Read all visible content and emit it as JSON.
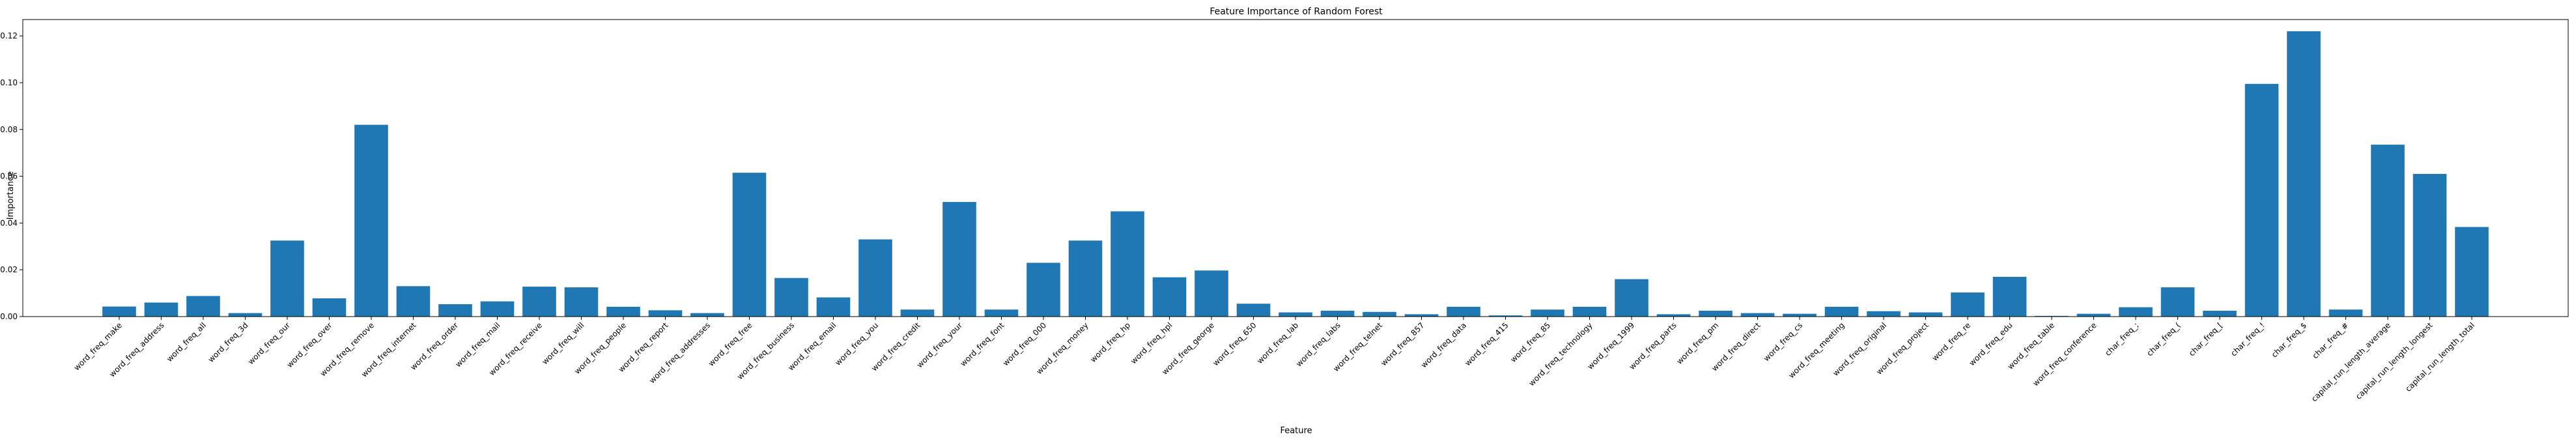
{
  "chart_data": {
    "type": "bar",
    "title": "Feature Importance of Random Forest",
    "xlabel": "Feature",
    "ylabel": "Importance",
    "ylim": [
      0,
      0.127
    ],
    "yticks": [
      0.0,
      0.02,
      0.04,
      0.06,
      0.08,
      0.1,
      0.12
    ],
    "ytick_labels": [
      "0.00",
      "0.02",
      "0.04",
      "0.06",
      "0.08",
      "0.10",
      "0.12"
    ],
    "bar_color": "#1f77b4",
    "grid": false,
    "categories": [
      "word_freq_make",
      "word_freq_address",
      "word_freq_all",
      "word_freq_3d",
      "word_freq_our",
      "word_freq_over",
      "word_freq_remove",
      "word_freq_internet",
      "word_freq_order",
      "word_freq_mail",
      "word_freq_receive",
      "word_freq_will",
      "word_freq_people",
      "word_freq_report",
      "word_freq_addresses",
      "word_freq_free",
      "word_freq_business",
      "word_freq_email",
      "word_freq_you",
      "word_freq_credit",
      "word_freq_your",
      "word_freq_font",
      "word_freq_000",
      "word_freq_money",
      "word_freq_hp",
      "word_freq_hpl",
      "word_freq_george",
      "word_freq_650",
      "word_freq_lab",
      "word_freq_labs",
      "word_freq_telnet",
      "word_freq_857",
      "word_freq_data",
      "word_freq_415",
      "word_freq_85",
      "word_freq_technology",
      "word_freq_1999",
      "word_freq_parts",
      "word_freq_pm",
      "word_freq_direct",
      "word_freq_cs",
      "word_freq_meeting",
      "word_freq_original",
      "word_freq_project",
      "word_freq_re",
      "word_freq_edu",
      "word_freq_table",
      "word_freq_conference",
      "char_freq_;",
      "char_freq_(",
      "char_freq_[",
      "char_freq_!",
      "char_freq_$",
      "char_freq_#",
      "capital_run_length_average",
      "capital_run_length_longest",
      "capital_run_length_total"
    ],
    "values": [
      0.0043,
      0.006,
      0.0088,
      0.0015,
      0.0325,
      0.0078,
      0.082,
      0.013,
      0.0053,
      0.0065,
      0.0128,
      0.0125,
      0.0042,
      0.0027,
      0.0015,
      0.0615,
      0.0165,
      0.0082,
      0.033,
      0.003,
      0.049,
      0.003,
      0.023,
      0.0325,
      0.045,
      0.0168,
      0.0197,
      0.0055,
      0.0018,
      0.0025,
      0.002,
      0.001,
      0.0042,
      0.0005,
      0.003,
      0.0042,
      0.016,
      0.001,
      0.0025,
      0.0015,
      0.0012,
      0.0042,
      0.0023,
      0.0018,
      0.0103,
      0.017,
      0.0003,
      0.0012,
      0.004,
      0.0125,
      0.0025,
      0.0995,
      0.122,
      0.003,
      0.0735,
      0.061,
      0.0383
    ]
  }
}
